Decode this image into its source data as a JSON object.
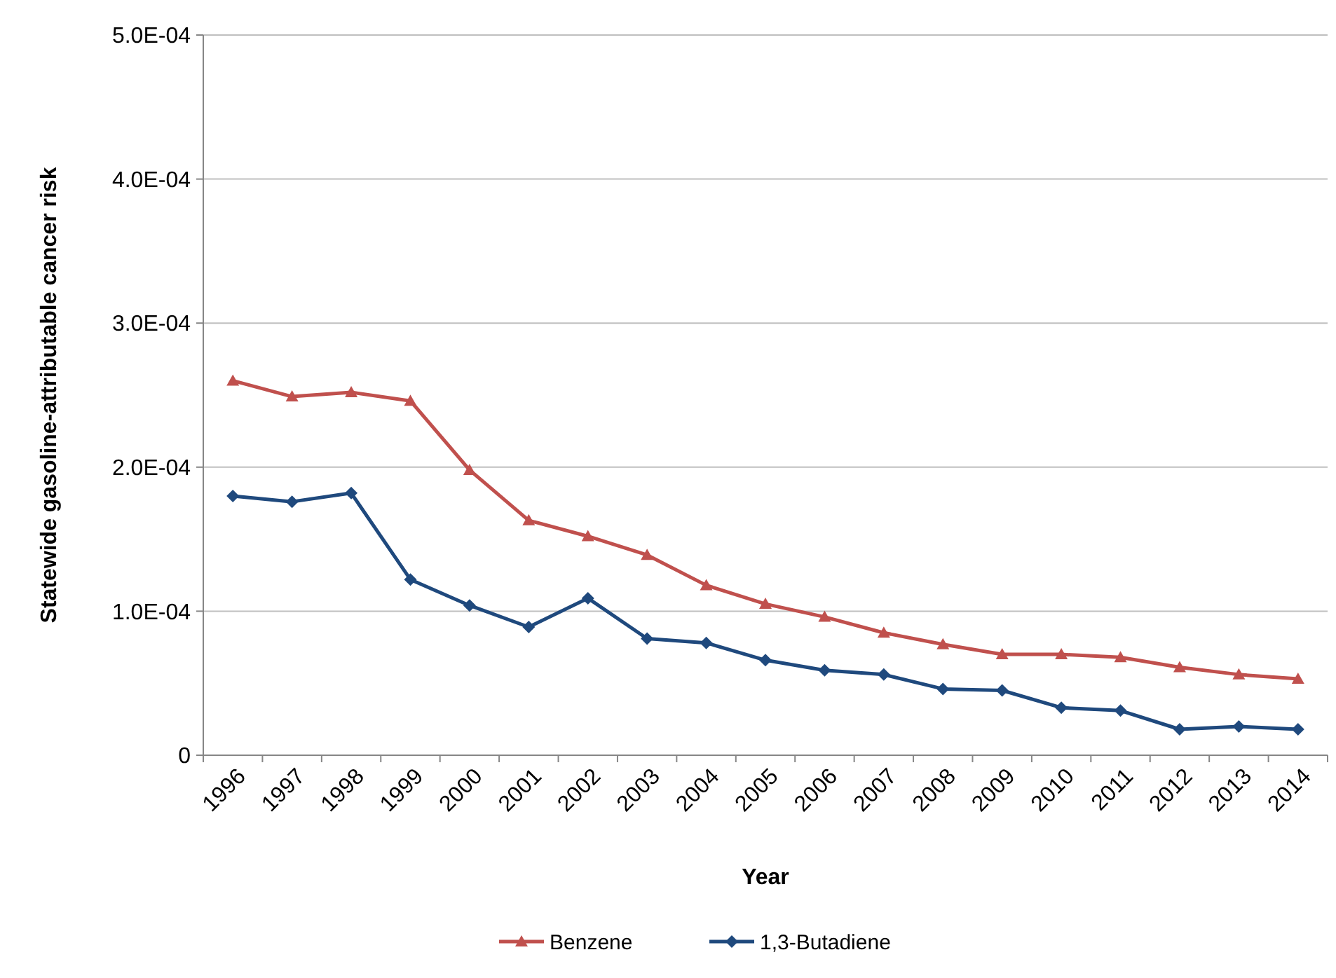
{
  "chart_data": {
    "type": "line",
    "xlabel": "Year",
    "ylabel": "Statewide gasoline-attributable  cancer risk",
    "categories": [
      "1996",
      "1997",
      "1998",
      "1999",
      "2000",
      "2001",
      "2002",
      "2003",
      "2004",
      "2005",
      "2006",
      "2007",
      "2008",
      "2009",
      "2010",
      "2011",
      "2012",
      "2013",
      "2014"
    ],
    "series": [
      {
        "name": "Benzene",
        "color": "#c0504d",
        "marker": "triangle",
        "values": [
          0.00026,
          0.000249,
          0.000252,
          0.000246,
          0.000198,
          0.000163,
          0.000152,
          0.000139,
          0.000118,
          0.000105,
          9.6e-05,
          8.5e-05,
          7.7e-05,
          7e-05,
          7e-05,
          6.8e-05,
          6.1e-05,
          5.6e-05,
          5.3e-05
        ]
      },
      {
        "name": "1,3-Butadiene",
        "color": "#1f497d",
        "marker": "diamond",
        "values": [
          0.00018,
          0.000176,
          0.000182,
          0.000122,
          0.000104,
          8.9e-05,
          0.000109,
          8.1e-05,
          7.8e-05,
          6.6e-05,
          5.9e-05,
          5.6e-05,
          4.6e-05,
          4.5e-05,
          3.3e-05,
          3.1e-05,
          1.8e-05,
          2e-05,
          1.8e-05
        ]
      }
    ],
    "ylim": [
      0,
      0.0005
    ],
    "yticks": [
      0,
      {
        "value": 0.0001,
        "label": "1.0E-04"
      },
      {
        "value": 0.0002,
        "label": "2.0E-04"
      },
      {
        "value": 0.0003,
        "label": "3.0E-04"
      },
      {
        "value": 0.0004,
        "label": "4.0E-04"
      },
      {
        "value": 0.0005,
        "label": "5.0E-04"
      }
    ],
    "grid": "y",
    "legend": "bottom",
    "line_style": "solid"
  }
}
